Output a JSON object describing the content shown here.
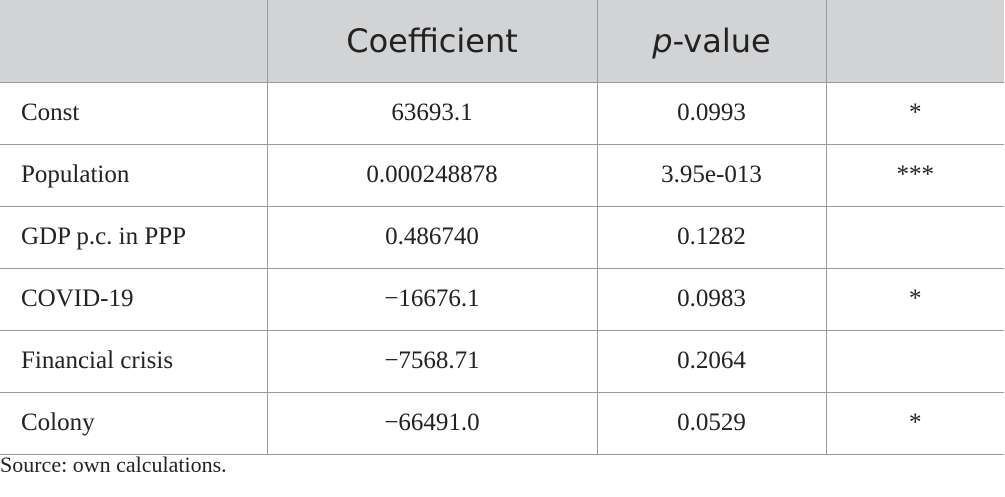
{
  "table": {
    "headers": {
      "col0": "",
      "col1": "Coefficient",
      "col2_italic": "p",
      "col2_rest": "-value",
      "col3": ""
    },
    "rows": [
      {
        "variable": "Const",
        "coefficient": "63693.1",
        "p_value": "0.0993",
        "significance": "*"
      },
      {
        "variable": "Population",
        "coefficient": "0.000248878",
        "p_value": "3.95e-013",
        "significance": "***"
      },
      {
        "variable": "GDP p.c. in PPP",
        "coefficient": "0.486740",
        "p_value": "0.1282",
        "significance": ""
      },
      {
        "variable": "COVID-19",
        "coefficient": "−16676.1",
        "p_value": "0.0983",
        "significance": "*"
      },
      {
        "variable": "Financial crisis",
        "coefficient": "−7568.71",
        "p_value": "0.2064",
        "significance": ""
      },
      {
        "variable": "Colony",
        "coefficient": "−66491.0",
        "p_value": "0.0529",
        "significance": "*"
      }
    ]
  },
  "source_note": "Source: own calculations.",
  "colors": {
    "header_bg": "#d2d3d5",
    "border": "#9a9a9a",
    "text": "#222222"
  }
}
